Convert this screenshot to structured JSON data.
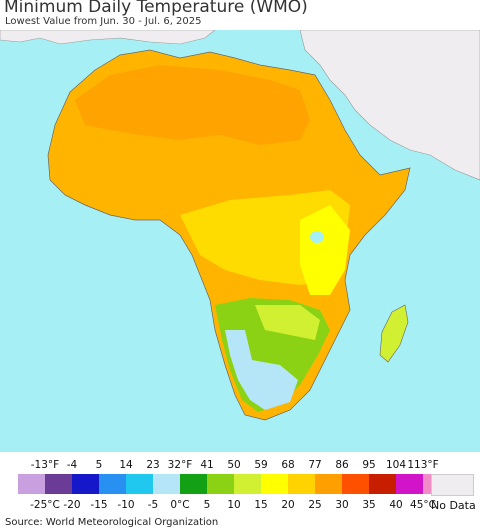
{
  "title": "Minimum Daily Temperature (WMO)",
  "subtitle": "Lowest Value from Jun. 30 - Jul. 6, 2025",
  "source": "Source: World Meteorological Organization",
  "legend": {
    "fahrenheit_labels": [
      "-13°F",
      "-4",
      "5",
      "14",
      "23",
      "32°F",
      "41",
      "50",
      "59",
      "68",
      "77",
      "86",
      "95",
      "104",
      "113°F"
    ],
    "celsius_labels": [
      "-25°C",
      "-20",
      "-15",
      "-10",
      "-5",
      "0°C",
      "5",
      "10",
      "15",
      "20",
      "25",
      "30",
      "35",
      "40",
      "45°C"
    ],
    "colors": [
      "#c8a0e0",
      "#6a3c96",
      "#1418c8",
      "#2890f0",
      "#20c8f0",
      "#b4e6f8",
      "#14a014",
      "#8cd214",
      "#d2f032",
      "#ffff00",
      "#ffd200",
      "#ffa000",
      "#ff5000",
      "#c81e00",
      "#d214c8",
      "#f08cc8"
    ],
    "no_data_label": "No Data",
    "no_data_color": "#f0edf0"
  },
  "map": {
    "ocean_color": "#a6f0f5",
    "nodata_land_color": "#f0edf0"
  }
}
